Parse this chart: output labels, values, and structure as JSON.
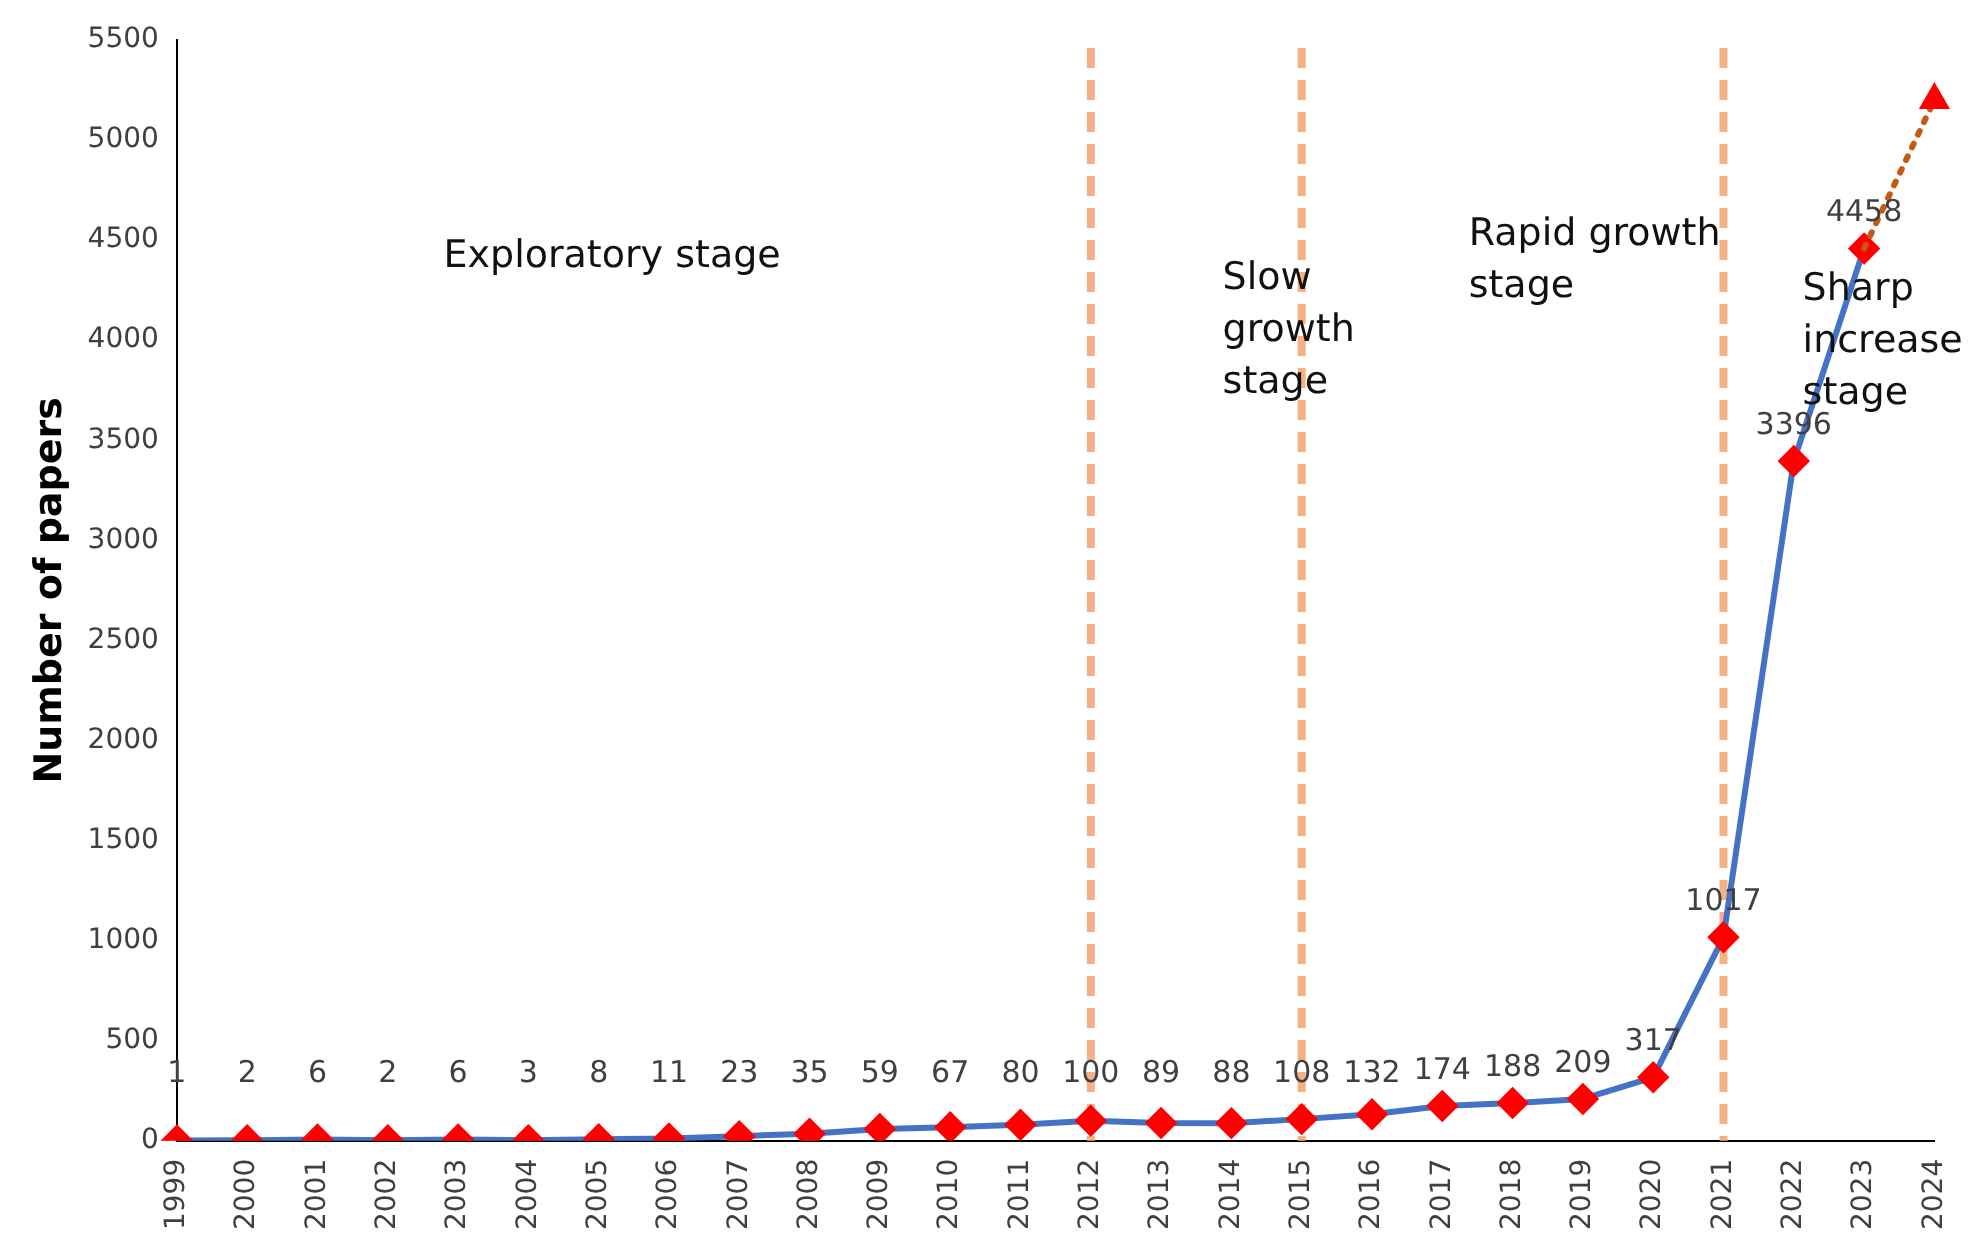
{
  "chart_data": {
    "type": "line",
    "ylabel": "Number of papers",
    "categories": [
      "1999",
      "2000",
      "2001",
      "2002",
      "2003",
      "2004",
      "2005",
      "2006",
      "2007",
      "2008",
      "2009",
      "2010",
      "2011",
      "2012",
      "2013",
      "2014",
      "2015",
      "2016",
      "2017",
      "2018",
      "2019",
      "2020",
      "2021",
      "2022",
      "2023",
      "2024"
    ],
    "series": [
      {
        "color": "#4472c4",
        "colors": [
          "#ff0000",
          "#ff0000",
          "#ff0000",
          "#ff0000",
          "#ff0000",
          "#ff0000",
          "#ff0000",
          "#ff0000",
          "#ff0000",
          "#ff0000",
          "#ff0000",
          "#ff0000",
          "#ff0000",
          "#ff0000",
          "#ff0000",
          "#ff0000",
          "#ff0000",
          "#ff0000",
          "#ff0000",
          "#ff0000",
          "#ff0000",
          "#ff0000",
          "#ff0000",
          "#ff0000",
          "#ff0000",
          null
        ],
        "marker": "diamond",
        "line_style": "solid",
        "values": [
          1,
          2,
          6,
          2,
          6,
          3,
          8,
          11,
          23,
          35,
          59,
          67,
          80,
          100,
          89,
          88,
          108,
          132,
          174,
          188,
          209,
          317,
          1017,
          3396,
          4458,
          null
        ],
        "value_labels": [
          "1",
          "2",
          "6",
          "2",
          "6",
          "3",
          "8",
          "11",
          "23",
          "35",
          "59",
          "67",
          "80",
          "100",
          "89",
          "88",
          "108",
          "132",
          "174",
          "188",
          "209",
          "317",
          "1017",
          "3396",
          "4458",
          null
        ]
      },
      {
        "color": "#c55a11",
        "colors": [
          null,
          null,
          null,
          null,
          null,
          null,
          null,
          null,
          null,
          null,
          null,
          null,
          null,
          null,
          null,
          null,
          null,
          null,
          null,
          null,
          null,
          null,
          null,
          null,
          null,
          "#ff0000"
        ],
        "marker": "triangle",
        "line_style": "dotted",
        "values": [
          null,
          null,
          null,
          null,
          null,
          null,
          null,
          null,
          null,
          null,
          null,
          null,
          null,
          null,
          null,
          null,
          null,
          null,
          null,
          null,
          null,
          null,
          null,
          null,
          4458,
          5200
        ]
      }
    ],
    "ylim": [
      0,
      5500
    ],
    "yticks": [
      0,
      500,
      1000,
      1500,
      2000,
      2500,
      3000,
      3500,
      4000,
      4500,
      5000,
      5500
    ],
    "grid": false,
    "legend": false,
    "ref_lines": [
      {
        "axis": "x",
        "value": "2012",
        "color": "#f4b183",
        "line_style": "dashed"
      },
      {
        "axis": "x",
        "value": "2015",
        "color": "#f4b183",
        "line_style": "dashed"
      },
      {
        "axis": "x",
        "value": "2021",
        "color": "#f4b183",
        "line_style": "dashed"
      }
    ],
    "annotations": [
      "Exploratory stage",
      "Slow\ngrowth\nstage",
      "Rapid growth\nstage",
      "Sharp\nincrease\nstage"
    ]
  }
}
